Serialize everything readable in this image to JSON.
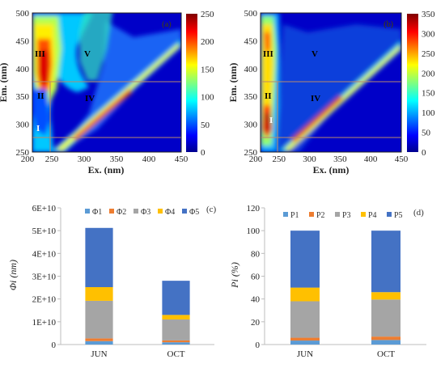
{
  "chart_data": [
    {
      "type": "heatmap",
      "xlabel": "Ex. (nm)",
      "ylabel": "Em. (nm)",
      "xticks": [
        "200",
        "250",
        "300",
        "350",
        "400",
        "450"
      ],
      "yticks": [
        "250",
        "300",
        "350",
        "400",
        "450",
        "500"
      ],
      "xlim": [
        220,
        450
      ],
      "ylim": [
        250,
        500
      ],
      "colorbar": {
        "ticks": [
          "0",
          "50",
          "100",
          "150",
          "200",
          "250"
        ],
        "range": [
          0,
          250
        ]
      },
      "region_labels": [
        "I",
        "II",
        "III",
        "IV",
        "V",
        "(a)"
      ],
      "region_lines": {
        "ex": [
          250
        ],
        "em": [
          280,
          380
        ]
      }
    },
    {
      "type": "heatmap",
      "xlabel": "Ex. (nm)",
      "ylabel": "Em. (nm)",
      "xticks": [
        "200",
        "250",
        "300",
        "350",
        "400",
        "450"
      ],
      "yticks": [
        "250",
        "300",
        "350",
        "400",
        "450",
        "500"
      ],
      "xlim": [
        220,
        450
      ],
      "ylim": [
        250,
        500
      ],
      "colorbar": {
        "ticks": [
          "0",
          "50",
          "100",
          "150",
          "200",
          "250",
          "300",
          "350"
        ],
        "range": [
          0,
          350
        ]
      },
      "region_labels": [
        "I",
        "II",
        "III",
        "IV",
        "V",
        "(b)"
      ],
      "region_lines": {
        "ex": [
          250
        ],
        "em": [
          280,
          380
        ]
      }
    },
    {
      "type": "bar",
      "stacked": true,
      "panel_label": "(c)",
      "categories": [
        "JUN",
        "OCT"
      ],
      "ylabel": "Φi (nm)",
      "yticks": [
        "0",
        "1E+10",
        "2E+10",
        "3E+10",
        "4E+10",
        "5E+10",
        "6E+10"
      ],
      "ylim": [
        0,
        60000000000.0
      ],
      "legend_position": "top",
      "series": [
        {
          "name": "Φ1",
          "values": [
            1500000000.0,
            1000000000.0
          ]
        },
        {
          "name": "Φ2",
          "values": [
            1200000000.0,
            800000000.0
          ]
        },
        {
          "name": "Φ3",
          "values": [
            16500000000.0,
            9200000000.0
          ]
        },
        {
          "name": "Φ4",
          "values": [
            6000000000.0,
            2000000000.0
          ]
        },
        {
          "name": "Φ5",
          "values": [
            26000000000.0,
            15000000000.0
          ]
        }
      ]
    },
    {
      "type": "bar",
      "stacked": true,
      "panel_label": "(d)",
      "categories": [
        "JUN",
        "OCT"
      ],
      "ylabel": "Pi (%)",
      "yticks": [
        "0",
        "20",
        "40",
        "60",
        "80",
        "100",
        "120"
      ],
      "ylim": [
        0,
        120
      ],
      "legend_position": "top",
      "series": [
        {
          "name": "P1",
          "values": [
            3.5,
            4
          ]
        },
        {
          "name": "P2",
          "values": [
            2.5,
            3
          ]
        },
        {
          "name": "P3",
          "values": [
            32,
            32.5
          ]
        },
        {
          "name": "P4",
          "values": [
            12,
            6.5
          ]
        },
        {
          "name": "P5",
          "values": [
            50,
            54
          ]
        }
      ]
    }
  ],
  "colors": {
    "series": [
      "#5b9bd5",
      "#ed7d31",
      "#a5a5a5",
      "#ffc000",
      "#4472c4"
    ],
    "region_lines": "#b98a6e"
  }
}
